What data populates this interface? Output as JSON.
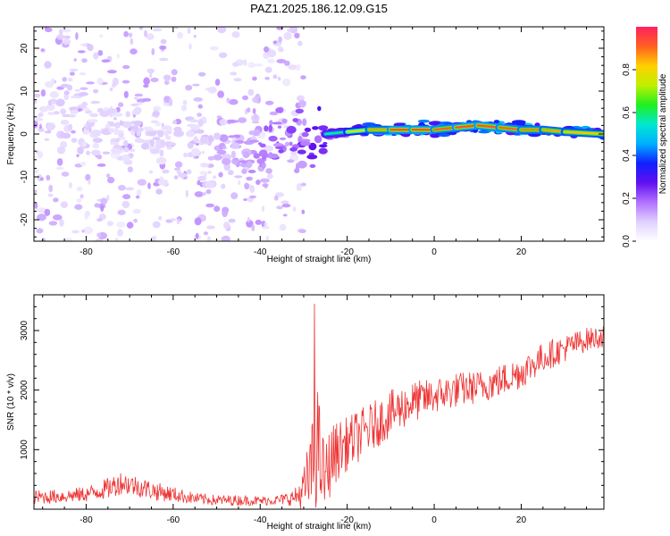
{
  "title": "PAZ1.2025.186.12.09.G15",
  "chart_data": [
    {
      "type": "heatmap",
      "name": "spectrogram",
      "xlabel": "Height of straight line (km)",
      "ylabel": "Frequency (Hz)",
      "xlim": [
        -92,
        39
      ],
      "ylim": [
        -25,
        25
      ],
      "xticks": [
        -80,
        -60,
        -40,
        -20,
        0,
        20
      ],
      "yticks": [
        -20,
        -10,
        0,
        10,
        20
      ],
      "colorbar": {
        "label": "Normalized spectral amplitude",
        "range": [
          0,
          1
        ],
        "ticks": [
          0.0,
          0.2,
          0.4,
          0.6,
          0.8
        ],
        "colors": [
          "#ffffff",
          "#e0d0ff",
          "#b070ff",
          "#6010f0",
          "#1020ff",
          "#00b0ff",
          "#00e8d0",
          "#20f020",
          "#c0f000",
          "#ffd000",
          "#ff6020",
          "#ff2060"
        ]
      },
      "ridge": {
        "x": [
          -92,
          -85,
          -80,
          -75,
          -70,
          -65,
          -60,
          -55,
          -50,
          -45,
          -40,
          -35,
          -30,
          -25,
          -20,
          -15,
          -10,
          -5,
          0,
          5,
          10,
          15,
          20,
          25,
          30,
          39
        ],
        "freq": [
          4,
          4,
          3,
          1,
          0,
          -1,
          -2,
          -3,
          -4,
          -5,
          -3,
          -2,
          -1,
          0,
          0.5,
          1,
          1,
          1,
          1,
          1.5,
          2,
          1.5,
          1,
          1,
          0.5,
          0
        ],
        "amplitude": [
          0.15,
          0.15,
          0.15,
          0.15,
          0.15,
          0.15,
          0.15,
          0.15,
          0.2,
          0.25,
          0.3,
          0.35,
          0.4,
          0.5,
          0.7,
          0.85,
          0.95,
          1.0,
          0.95,
          0.95,
          1.0,
          0.95,
          0.95,
          0.9,
          0.9,
          0.85
        ]
      }
    },
    {
      "type": "line",
      "name": "snr",
      "xlabel": "Height of straight line (km)",
      "ylabel": "SNR (10 * v/v)",
      "xlim": [
        -92,
        39
      ],
      "ylim": [
        0,
        3600
      ],
      "xticks": [
        -80,
        -60,
        -40,
        -20,
        0,
        20
      ],
      "yticks": [
        1000,
        2000,
        3000
      ],
      "color": "#ee3333",
      "trend": {
        "x": [
          -92,
          -85,
          -80,
          -75,
          -72,
          -68,
          -64,
          -60,
          -55,
          -50,
          -45,
          -40,
          -35,
          -32,
          -30,
          -28,
          -27,
          -26,
          -25,
          -24,
          -22,
          -20,
          -18,
          -15,
          -12,
          -10,
          -5,
          0,
          5,
          10,
          15,
          20,
          25,
          30,
          35,
          39
        ],
        "mean": [
          200,
          220,
          250,
          350,
          450,
          380,
          300,
          250,
          180,
          150,
          150,
          140,
          160,
          200,
          300,
          700,
          1200,
          700,
          500,
          800,
          1000,
          1100,
          1200,
          1350,
          1500,
          1600,
          1800,
          1900,
          2000,
          2050,
          2150,
          2300,
          2550,
          2700,
          2850,
          2900
        ],
        "noise": [
          120,
          120,
          130,
          180,
          200,
          180,
          160,
          130,
          100,
          90,
          90,
          80,
          90,
          150,
          400,
          800,
          1200,
          700,
          600,
          600,
          500,
          450,
          450,
          420,
          400,
          400,
          350,
          300,
          300,
          280,
          280,
          280,
          250,
          230,
          200,
          180
        ]
      },
      "peak": {
        "x": -27.5,
        "y": 3450
      }
    }
  ]
}
